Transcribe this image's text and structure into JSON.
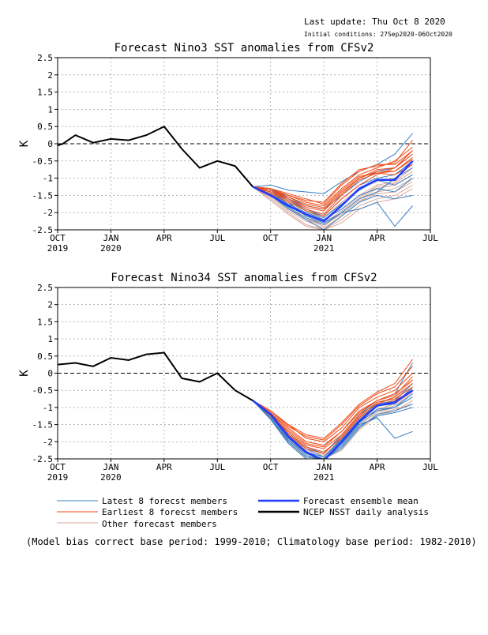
{
  "header": {
    "last_update": "Last update: Thu Oct 8 2020",
    "initial_condition": "Initial conditions: 27Sep2020-06Oct2020"
  },
  "x_ticks": [
    {
      "m": 0,
      "label": "OCT",
      "year": "2019"
    },
    {
      "m": 3,
      "label": "JAN",
      "year": "2020"
    },
    {
      "m": 6,
      "label": "APR",
      "year": ""
    },
    {
      "m": 9,
      "label": "JUL",
      "year": ""
    },
    {
      "m": 12,
      "label": "OCT",
      "year": ""
    },
    {
      "m": 15,
      "label": "JAN",
      "year": "2021"
    },
    {
      "m": 18,
      "label": "APR",
      "year": ""
    },
    {
      "m": 21,
      "label": "JUL",
      "year": ""
    }
  ],
  "legend": {
    "latest": "Latest 8 forecst members",
    "earliest": "Earliest 8 forecst members",
    "other": "Other forecast members",
    "mean": "Forecast ensemble mean",
    "analysis": "NCEP NSST daily analysis"
  },
  "colors": {
    "latest": "#3a7fc4",
    "earliest": "#f04a16",
    "other": "#d8a898",
    "mean": "#1f3cff",
    "analysis": "#000000"
  },
  "footnote": "(Model bias correct base period: 1999-2010; Climatology base period: 1982-2010)",
  "chart_data": [
    {
      "type": "line",
      "title": "Forecast Nino3 SST anomalies from CFSv2",
      "ylabel": "K",
      "ylim": [
        -2.5,
        2.5
      ],
      "yticks": [
        "2.5",
        "2",
        "1.5",
        "1",
        "0.5",
        "0",
        "-0.5",
        "-1",
        "-1.5",
        "-2",
        "-2.5"
      ],
      "xlim": [
        0,
        21
      ],
      "grid": true,
      "analysis": {
        "x": [
          0,
          0.3,
          1,
          2,
          3,
          4,
          5,
          6,
          7,
          8,
          9,
          10,
          11
        ],
        "y": [
          -0.05,
          0.0,
          0.25,
          0.03,
          0.14,
          0.1,
          0.25,
          0.5,
          -0.15,
          -0.7,
          -0.5,
          -0.65,
          -1.25
        ]
      },
      "mean": {
        "x": [
          11,
          12,
          13,
          14,
          15,
          16,
          17,
          18,
          19,
          20
        ],
        "y": [
          -1.25,
          -1.5,
          -1.8,
          -2.05,
          -2.25,
          -1.8,
          -1.3,
          -1.05,
          -1.05,
          -0.5
        ]
      },
      "latest": [
        [
          -1.25,
          -1.3,
          -1.6,
          -1.9,
          -2.1,
          -1.6,
          -1.2,
          -1.0,
          -0.9,
          -0.5
        ],
        [
          -1.25,
          -1.2,
          -1.35,
          -1.4,
          -1.45,
          -1.1,
          -0.8,
          -0.6,
          -0.3,
          0.3
        ],
        [
          -1.25,
          -1.5,
          -1.9,
          -2.2,
          -2.5,
          -2.1,
          -1.7,
          -1.5,
          -1.6,
          -1.5
        ],
        [
          -1.25,
          -1.45,
          -1.75,
          -2.0,
          -2.2,
          -1.9,
          -1.5,
          -1.3,
          -1.4,
          -1.0
        ],
        [
          -1.25,
          -1.4,
          -1.7,
          -2.1,
          -2.3,
          -2.0,
          -1.9,
          -1.7,
          -2.4,
          -1.8
        ],
        [
          -1.25,
          -1.3,
          -1.55,
          -1.8,
          -1.9,
          -1.5,
          -1.1,
          -0.8,
          -0.7,
          -0.3
        ],
        [
          -1.25,
          -1.35,
          -1.65,
          -1.95,
          -2.15,
          -1.75,
          -1.35,
          -1.05,
          -1.2,
          -0.9
        ],
        [
          -1.25,
          -1.5,
          -1.85,
          -2.15,
          -2.35,
          -2.0,
          -1.6,
          -1.4,
          -1.0,
          -0.7
        ]
      ],
      "earliest": [
        [
          -1.25,
          -1.35,
          -1.5,
          -1.7,
          -1.8,
          -1.3,
          -0.9,
          -0.7,
          -0.5,
          -0.1
        ],
        [
          -1.25,
          -1.3,
          -1.45,
          -1.6,
          -1.75,
          -1.2,
          -0.8,
          -0.6,
          -0.6,
          -0.2
        ],
        [
          -1.25,
          -1.4,
          -1.6,
          -1.8,
          -1.9,
          -1.4,
          -1.0,
          -0.8,
          -0.8,
          -0.4
        ],
        [
          -1.25,
          -1.35,
          -1.55,
          -1.75,
          -1.85,
          -1.35,
          -0.95,
          -0.85,
          -0.9,
          -0.6
        ],
        [
          -1.25,
          -1.45,
          -1.7,
          -1.95,
          -2.1,
          -1.6,
          -1.2,
          -0.9,
          -0.7,
          -0.3
        ],
        [
          -1.25,
          -1.3,
          -1.5,
          -1.65,
          -1.7,
          -1.15,
          -0.75,
          -0.65,
          -0.55,
          0.1
        ],
        [
          -1.25,
          -1.4,
          -1.65,
          -1.9,
          -2.05,
          -1.5,
          -1.05,
          -0.85,
          -0.8,
          -0.45
        ],
        [
          -1.25,
          -1.35,
          -1.6,
          -1.85,
          -1.95,
          -1.45,
          -1.0,
          -0.75,
          -0.7,
          -0.2
        ]
      ],
      "other": [
        [
          -1.25,
          -1.5,
          -1.9,
          -2.2,
          -2.4,
          -2.0,
          -1.6,
          -1.3,
          -1.2,
          -0.9
        ],
        [
          -1.25,
          -1.6,
          -2.0,
          -2.35,
          -2.5,
          -2.2,
          -1.8,
          -1.6,
          -1.5,
          -1.2
        ],
        [
          -1.25,
          -1.45,
          -1.8,
          -2.1,
          -2.2,
          -1.9,
          -1.5,
          -1.2,
          -1.1,
          -0.7
        ],
        [
          -1.25,
          -1.55,
          -1.95,
          -2.25,
          -2.45,
          -2.1,
          -1.7,
          -1.4,
          -1.3,
          -1.0
        ],
        [
          -1.25,
          -1.4,
          -1.75,
          -2.0,
          -2.15,
          -1.7,
          -1.3,
          -1.1,
          -1.0,
          -0.6
        ],
        [
          -1.25,
          -1.65,
          -2.05,
          -2.4,
          -2.5,
          -2.3,
          -1.9,
          -1.7,
          -1.6,
          -1.3
        ],
        [
          -1.25,
          -1.5,
          -1.85,
          -2.15,
          -2.3,
          -1.95,
          -1.55,
          -1.25,
          -1.15,
          -0.8
        ],
        [
          -1.25,
          -1.45,
          -1.85,
          -2.2,
          -2.35,
          -2.05,
          -1.65,
          -1.45,
          -1.4,
          -1.1
        ]
      ]
    },
    {
      "type": "line",
      "title": "Forecast Nino34 SST anomalies from CFSv2",
      "ylabel": "K",
      "ylim": [
        -2.5,
        2.5
      ],
      "yticks": [
        "2.5",
        "2",
        "1.5",
        "1",
        "0.5",
        "0",
        "-0.5",
        "-1",
        "-1.5",
        "-2",
        "-2.5"
      ],
      "xlim": [
        0,
        21
      ],
      "grid": true,
      "analysis": {
        "x": [
          0,
          1,
          2,
          3,
          4,
          5,
          6,
          7,
          8,
          9,
          10,
          11
        ],
        "y": [
          0.25,
          0.3,
          0.2,
          0.45,
          0.38,
          0.55,
          0.6,
          -0.15,
          -0.25,
          0.0,
          -0.5,
          -0.8
        ]
      },
      "mean": {
        "x": [
          11,
          12,
          13,
          14,
          15,
          16,
          17,
          18,
          19,
          20
        ],
        "y": [
          -0.8,
          -1.2,
          -1.85,
          -2.3,
          -2.55,
          -2.0,
          -1.4,
          -0.95,
          -0.85,
          -0.5
        ]
      },
      "latest": [
        [
          -0.8,
          -1.25,
          -1.9,
          -2.35,
          -2.5,
          -2.0,
          -1.4,
          -1.1,
          -1.0,
          -0.6
        ],
        [
          -0.8,
          -1.3,
          -2.0,
          -2.45,
          -2.5,
          -2.1,
          -1.5,
          -1.3,
          -1.9,
          -1.7
        ],
        [
          -0.8,
          -1.2,
          -1.8,
          -2.2,
          -2.45,
          -1.9,
          -1.3,
          -0.9,
          -0.8,
          -0.3
        ],
        [
          -0.8,
          -1.35,
          -2.05,
          -2.5,
          -2.5,
          -2.2,
          -1.6,
          -1.2,
          -1.1,
          -0.9
        ],
        [
          -0.8,
          -1.15,
          -1.75,
          -2.15,
          -2.35,
          -1.8,
          -1.2,
          -0.8,
          -0.6,
          0.3
        ],
        [
          -0.8,
          -1.3,
          -1.95,
          -2.4,
          -2.5,
          -2.05,
          -1.45,
          -1.05,
          -1.0,
          -0.7
        ],
        [
          -0.8,
          -1.25,
          -1.9,
          -2.3,
          -2.45,
          -1.95,
          -1.35,
          -0.95,
          -0.9,
          -0.4
        ],
        [
          -0.8,
          -1.3,
          -2.0,
          -2.45,
          -2.5,
          -2.15,
          -1.55,
          -1.25,
          -1.15,
          -1.0
        ]
      ],
      "earliest": [
        [
          -0.8,
          -1.1,
          -1.5,
          -1.9,
          -2.0,
          -1.6,
          -1.0,
          -0.7,
          -0.5,
          0.0
        ],
        [
          -0.8,
          -1.15,
          -1.6,
          -2.0,
          -2.1,
          -1.7,
          -1.1,
          -0.8,
          -0.6,
          -0.2
        ],
        [
          -0.8,
          -1.2,
          -1.7,
          -2.1,
          -2.2,
          -1.8,
          -1.2,
          -0.9,
          -0.7,
          -0.3
        ],
        [
          -0.8,
          -1.1,
          -1.55,
          -1.85,
          -1.95,
          -1.5,
          -0.95,
          -0.6,
          -0.4,
          0.2
        ],
        [
          -0.8,
          -1.25,
          -1.8,
          -2.2,
          -2.35,
          -1.85,
          -1.25,
          -0.85,
          -0.75,
          -0.4
        ],
        [
          -0.8,
          -1.15,
          -1.65,
          -2.05,
          -2.15,
          -1.7,
          -1.15,
          -0.8,
          -0.65,
          -0.1
        ],
        [
          -0.8,
          -1.2,
          -1.75,
          -2.15,
          -2.3,
          -1.9,
          -1.3,
          -0.95,
          -0.8,
          -0.5
        ],
        [
          -0.8,
          -1.1,
          -1.5,
          -1.8,
          -1.9,
          -1.45,
          -0.9,
          -0.55,
          -0.3,
          0.4
        ]
      ],
      "other": [
        [
          -0.8,
          -1.3,
          -1.95,
          -2.4,
          -2.5,
          -2.1,
          -1.5,
          -1.1,
          -0.95,
          -0.6
        ],
        [
          -0.8,
          -1.25,
          -1.85,
          -2.3,
          -2.45,
          -2.0,
          -1.45,
          -1.05,
          -0.9,
          -0.55
        ],
        [
          -0.8,
          -1.35,
          -2.05,
          -2.5,
          -2.5,
          -2.25,
          -1.65,
          -1.25,
          -1.1,
          -0.8
        ],
        [
          -0.8,
          -1.2,
          -1.8,
          -2.25,
          -2.4,
          -1.95,
          -1.35,
          -0.95,
          -0.85,
          -0.45
        ],
        [
          -0.8,
          -1.3,
          -1.95,
          -2.35,
          -2.5,
          -2.05,
          -1.5,
          -1.15,
          -1.0,
          -0.7
        ],
        [
          -0.8,
          -1.25,
          -1.9,
          -2.3,
          -2.45,
          -1.9,
          -1.3,
          -0.9,
          -0.8,
          -0.3
        ],
        [
          -0.8,
          -1.35,
          -2.0,
          -2.45,
          -2.5,
          -2.2,
          -1.6,
          -1.2,
          -1.05,
          -0.9
        ],
        [
          -0.8,
          -1.2,
          -1.75,
          -2.2,
          -2.35,
          -1.85,
          -1.25,
          -0.85,
          -0.7,
          -0.2
        ]
      ]
    }
  ]
}
